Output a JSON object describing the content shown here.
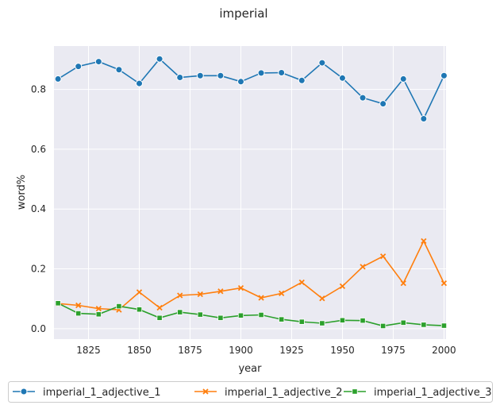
{
  "chart_data": {
    "type": "line",
    "title": "imperial",
    "xlabel": "year",
    "ylabel": "word%",
    "xlim": [
      1808,
      2001
    ],
    "ylim": [
      -0.035,
      0.945
    ],
    "xticks": [
      1825,
      1850,
      1875,
      1900,
      1925,
      1950,
      1975,
      2000
    ],
    "yticks": [
      0.0,
      0.2,
      0.4,
      0.6,
      0.8
    ],
    "ytick_labels": [
      "0.0",
      "0.2",
      "0.4",
      "0.6",
      "0.8"
    ],
    "grid": true,
    "legend_position": "bottom-outside",
    "x": [
      1810,
      1820,
      1830,
      1840,
      1850,
      1860,
      1870,
      1880,
      1890,
      1900,
      1910,
      1920,
      1930,
      1940,
      1950,
      1960,
      1970,
      1980,
      1990,
      2000
    ],
    "series": [
      {
        "name": "imperial_1_adjective_1",
        "color": "#1f77b4",
        "marker": "circle",
        "values": [
          0.835,
          0.877,
          0.893,
          0.866,
          0.82,
          0.902,
          0.84,
          0.846,
          0.846,
          0.826,
          0.855,
          0.856,
          0.83,
          0.889,
          0.838,
          0.772,
          0.752,
          0.835,
          0.702,
          0.846
        ]
      },
      {
        "name": "imperial_1_adjective_2",
        "color": "#ff7f0e",
        "marker": "x",
        "values": [
          0.084,
          0.078,
          0.067,
          0.063,
          0.122,
          0.07,
          0.111,
          0.115,
          0.125,
          0.136,
          0.103,
          0.118,
          0.155,
          0.101,
          0.142,
          0.207,
          0.242,
          0.152,
          0.293,
          0.152
        ]
      },
      {
        "name": "imperial_1_adjective_3",
        "color": "#2ca02c",
        "marker": "square",
        "values": [
          0.085,
          0.051,
          0.048,
          0.075,
          0.064,
          0.036,
          0.055,
          0.047,
          0.036,
          0.044,
          0.046,
          0.031,
          0.023,
          0.018,
          0.028,
          0.027,
          0.009,
          0.02,
          0.013,
          0.01
        ]
      }
    ]
  }
}
